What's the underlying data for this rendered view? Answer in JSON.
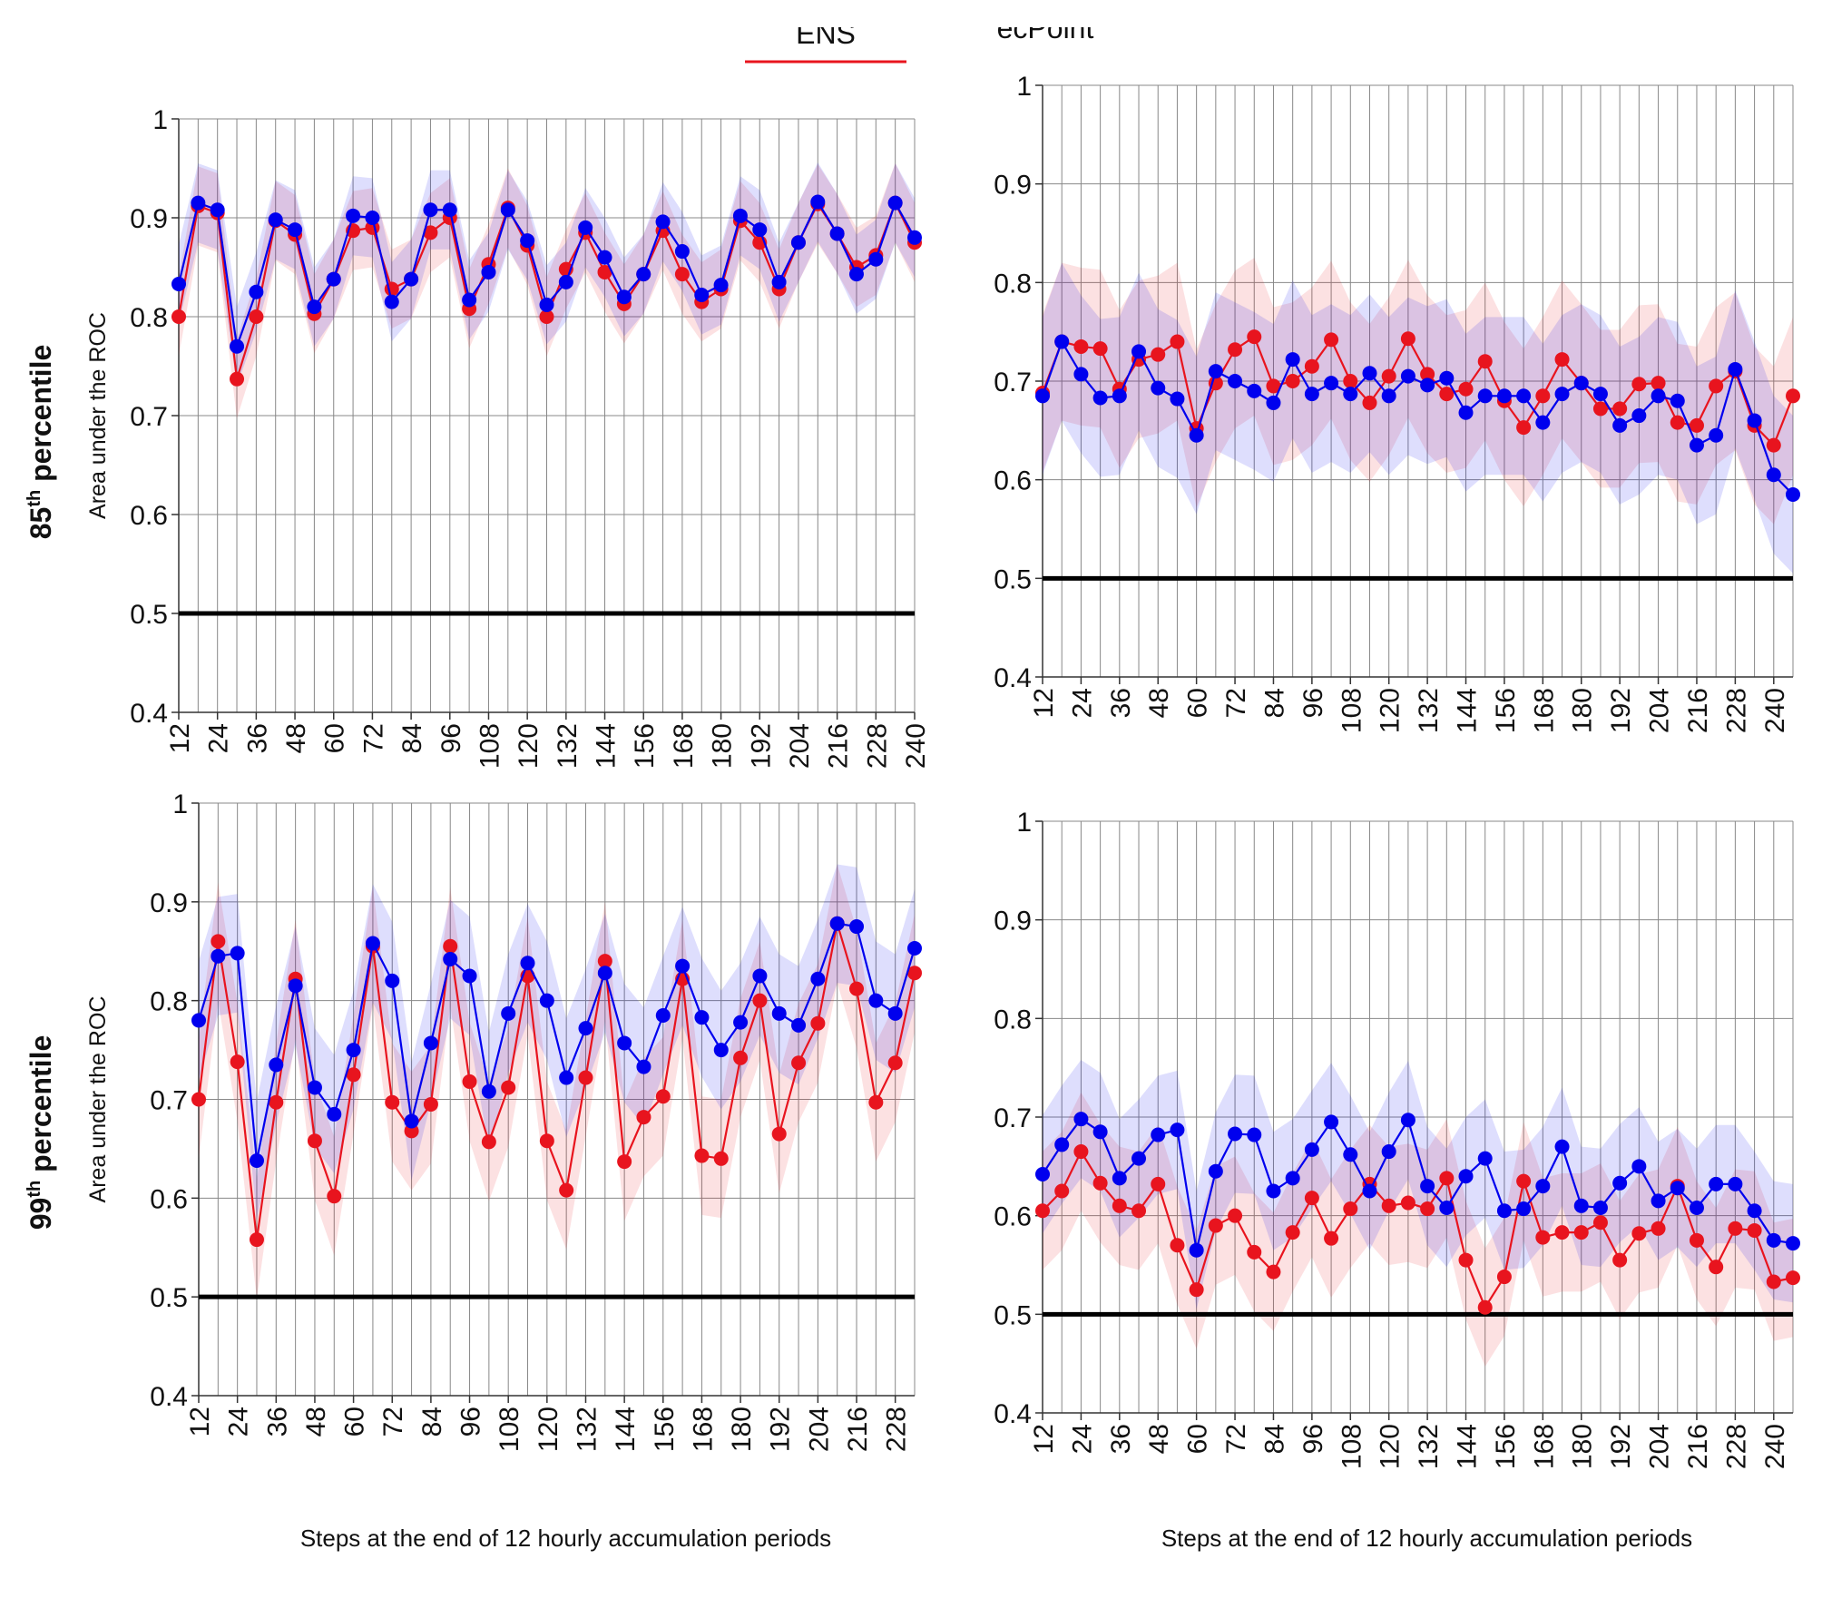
{
  "chart_data": [
    {
      "type": "line",
      "row_label": {
        "number": "85",
        "suffix": "th",
        "word": "percentile"
      },
      "ylabel": "Area under the ROC",
      "x": [
        12,
        18,
        24,
        30,
        36,
        42,
        48,
        54,
        60,
        66,
        72,
        78,
        84,
        90,
        96,
        102,
        108,
        114,
        120,
        126,
        132,
        138,
        144,
        150,
        156,
        162,
        168,
        174,
        180,
        186,
        192,
        198,
        204,
        210,
        216,
        222,
        228,
        234,
        240
      ],
      "series": [
        {
          "name": "ENS",
          "color": "#e8141e",
          "interval": 0.04,
          "values": [
            0.8,
            0.912,
            0.905,
            0.737,
            0.8,
            0.897,
            0.883,
            0.803,
            0.838,
            0.887,
            0.89,
            0.828,
            0.838,
            0.885,
            0.9,
            0.808,
            0.853,
            0.91,
            0.872,
            0.8,
            0.848,
            0.885,
            0.845,
            0.813,
            0.843,
            0.887,
            0.843,
            0.815,
            0.828,
            0.897,
            0.875,
            0.828,
            0.875,
            0.914,
            0.884,
            0.85,
            0.862,
            0.915,
            0.875
          ]
        },
        {
          "name": "ecPoint",
          "color": "#0000ee",
          "interval": 0.04,
          "values": [
            0.833,
            0.915,
            0.908,
            0.77,
            0.825,
            0.898,
            0.888,
            0.81,
            0.838,
            0.902,
            0.9,
            0.815,
            0.838,
            0.908,
            0.908,
            0.817,
            0.845,
            0.908,
            0.877,
            0.812,
            0.835,
            0.89,
            0.86,
            0.82,
            0.843,
            0.896,
            0.866,
            0.822,
            0.832,
            0.902,
            0.888,
            0.835,
            0.875,
            0.916,
            0.884,
            0.843,
            0.858,
            0.915,
            0.88
          ]
        }
      ],
      "xlim": [
        12,
        240
      ],
      "ylim": [
        0.4,
        1
      ],
      "xticks": [
        12,
        24,
        36,
        48,
        60,
        72,
        84,
        96,
        108,
        120,
        132,
        144,
        156,
        168,
        180,
        192,
        204,
        216,
        228,
        240
      ],
      "yticks": [
        0.4,
        0.5,
        0.6,
        0.7,
        0.8,
        0.9,
        1
      ],
      "reference_line": 0.5,
      "grid": true
    },
    {
      "type": "line",
      "x": [
        12,
        18,
        24,
        30,
        36,
        42,
        48,
        54,
        60,
        66,
        72,
        78,
        84,
        90,
        96,
        102,
        108,
        114,
        120,
        126,
        132,
        138,
        144,
        150,
        156,
        162,
        168,
        174,
        180,
        186,
        192,
        198,
        204,
        210,
        216,
        222,
        228,
        234,
        240,
        246
      ],
      "series": [
        {
          "name": "ENS",
          "color": "#e8141e",
          "interval": 0.08,
          "values": [
            0.688,
            0.74,
            0.735,
            0.733,
            0.692,
            0.722,
            0.727,
            0.74,
            0.652,
            0.698,
            0.732,
            0.745,
            0.695,
            0.7,
            0.715,
            0.742,
            0.7,
            0.678,
            0.705,
            0.743,
            0.707,
            0.687,
            0.692,
            0.72,
            0.68,
            0.653,
            0.685,
            0.722,
            0.698,
            0.672,
            0.672,
            0.697,
            0.698,
            0.658,
            0.655,
            0.695,
            0.71,
            0.655,
            0.635,
            0.685
          ]
        },
        {
          "name": "ecPoint",
          "color": "#0000ee",
          "interval": 0.08,
          "values": [
            0.685,
            0.74,
            0.707,
            0.683,
            0.685,
            0.73,
            0.693,
            0.682,
            0.645,
            0.71,
            0.7,
            0.69,
            0.678,
            0.722,
            0.687,
            0.698,
            0.687,
            0.708,
            0.685,
            0.705,
            0.696,
            0.703,
            0.668,
            0.685,
            0.685,
            0.685,
            0.658,
            0.687,
            0.698,
            0.687,
            0.655,
            0.665,
            0.685,
            0.68,
            0.635,
            0.645,
            0.712,
            0.66,
            0.605,
            0.585
          ]
        }
      ],
      "xlim": [
        12,
        246
      ],
      "ylim": [
        0.4,
        1
      ],
      "xticks": [
        12,
        24,
        36,
        48,
        60,
        72,
        84,
        96,
        108,
        120,
        132,
        144,
        156,
        168,
        180,
        192,
        204,
        216,
        228,
        240
      ],
      "yticks": [
        0.4,
        0.5,
        0.6,
        0.7,
        0.8,
        0.9,
        1
      ],
      "reference_line": 0.5,
      "grid": true
    },
    {
      "type": "line",
      "row_label": {
        "number": "99",
        "suffix": "th",
        "word": "percentile"
      },
      "ylabel": "Area under the ROC",
      "xlabel": "Steps at the end of 12 hourly accumulation periods",
      "x": [
        12,
        18,
        24,
        30,
        36,
        42,
        48,
        54,
        60,
        66,
        72,
        78,
        84,
        90,
        96,
        102,
        108,
        114,
        120,
        126,
        132,
        138,
        144,
        150,
        156,
        162,
        168,
        174,
        180,
        186,
        192,
        198,
        204,
        210,
        216,
        222,
        228,
        234
      ],
      "series": [
        {
          "name": "ENS",
          "color": "#e8141e",
          "interval": 0.06,
          "values": [
            0.7,
            0.86,
            0.738,
            0.558,
            0.697,
            0.822,
            0.658,
            0.602,
            0.725,
            0.855,
            0.697,
            0.668,
            0.695,
            0.855,
            0.718,
            0.657,
            0.712,
            0.825,
            0.658,
            0.608,
            0.722,
            0.84,
            0.637,
            0.682,
            0.703,
            0.822,
            0.643,
            0.64,
            0.742,
            0.8,
            0.665,
            0.737,
            0.777,
            0.878,
            0.812,
            0.697,
            0.737,
            0.828
          ]
        },
        {
          "name": "ecPoint",
          "color": "#0000ee",
          "interval": 0.06,
          "values": [
            0.78,
            0.845,
            0.848,
            0.638,
            0.735,
            0.815,
            0.712,
            0.685,
            0.75,
            0.858,
            0.82,
            0.678,
            0.757,
            0.842,
            0.825,
            0.708,
            0.787,
            0.838,
            0.8,
            0.722,
            0.772,
            0.828,
            0.757,
            0.733,
            0.785,
            0.835,
            0.783,
            0.75,
            0.778,
            0.825,
            0.787,
            0.775,
            0.822,
            0.878,
            0.875,
            0.8,
            0.787,
            0.853
          ]
        }
      ],
      "xlim": [
        12,
        234
      ],
      "ylim": [
        0.4,
        1
      ],
      "xticks": [
        12,
        24,
        36,
        48,
        60,
        72,
        84,
        96,
        108,
        120,
        132,
        144,
        156,
        168,
        180,
        192,
        204,
        216,
        228
      ],
      "yticks": [
        0.4,
        0.5,
        0.6,
        0.7,
        0.8,
        0.9,
        1
      ],
      "reference_line": 0.5,
      "grid": true
    },
    {
      "type": "line",
      "xlabel": "Steps at the end of 12 hourly accumulation periods",
      "x": [
        12,
        18,
        24,
        30,
        36,
        42,
        48,
        54,
        60,
        66,
        72,
        78,
        84,
        90,
        96,
        102,
        108,
        114,
        120,
        126,
        132,
        138,
        144,
        150,
        156,
        162,
        168,
        174,
        180,
        186,
        192,
        198,
        204,
        210,
        216,
        222,
        228,
        234,
        240,
        246
      ],
      "series": [
        {
          "name": "ENS",
          "color": "#e8141e",
          "interval": 0.06,
          "values": [
            0.605,
            0.625,
            0.665,
            0.633,
            0.61,
            0.605,
            0.632,
            0.57,
            0.525,
            0.59,
            0.6,
            0.563,
            0.543,
            0.583,
            0.618,
            0.577,
            0.607,
            0.632,
            0.61,
            0.613,
            0.607,
            0.638,
            0.555,
            0.507,
            0.538,
            0.635,
            0.578,
            0.583,
            0.583,
            0.593,
            0.555,
            0.582,
            0.587,
            0.63,
            0.575,
            0.548,
            0.587,
            0.585,
            0.533,
            0.537
          ]
        },
        {
          "name": "ecPoint",
          "color": "#0000ee",
          "interval": 0.06,
          "values": [
            0.642,
            0.672,
            0.698,
            0.685,
            0.638,
            0.658,
            0.682,
            0.687,
            0.565,
            0.645,
            0.683,
            0.682,
            0.625,
            0.638,
            0.667,
            0.695,
            0.662,
            0.625,
            0.665,
            0.697,
            0.63,
            0.608,
            0.64,
            0.658,
            0.605,
            0.607,
            0.63,
            0.67,
            0.61,
            0.608,
            0.633,
            0.65,
            0.615,
            0.628,
            0.608,
            0.632,
            0.632,
            0.605,
            0.575,
            0.572
          ]
        }
      ],
      "xlim": [
        12,
        246
      ],
      "ylim": [
        0.4,
        1
      ],
      "xticks": [
        12,
        24,
        36,
        48,
        60,
        72,
        84,
        96,
        108,
        120,
        132,
        144,
        156,
        168,
        180,
        192,
        204,
        216,
        228,
        240
      ],
      "yticks": [
        0.4,
        0.5,
        0.6,
        0.7,
        0.8,
        0.9,
        1
      ],
      "reference_line": 0.5,
      "grid": true
    }
  ]
}
